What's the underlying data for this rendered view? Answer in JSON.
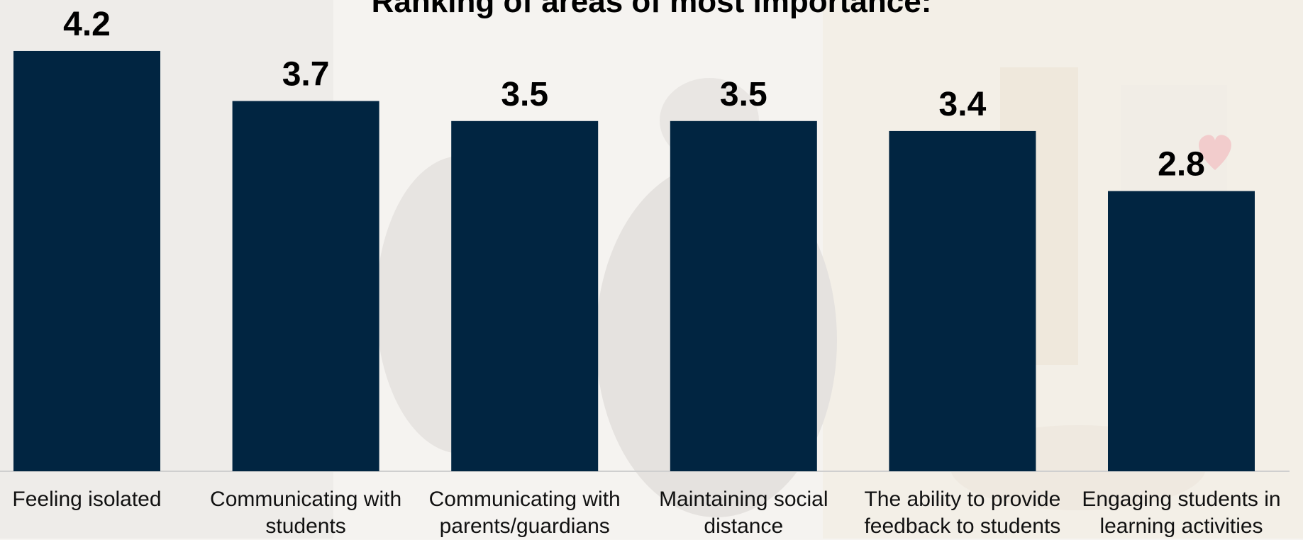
{
  "chart_data": {
    "type": "bar",
    "title": "Ranking of areas of most importance:",
    "categories": [
      "Feeling isolated",
      "Communicating with students",
      "Communicating with parents/guardians",
      "Maintaining  social distance",
      "The ability to provide feedback to students",
      "Engaging students in learning activities"
    ],
    "values": [
      4.2,
      3.7,
      3.5,
      3.5,
      3.4,
      2.8
    ],
    "value_labels": [
      "4.2",
      "3.7",
      "3.5",
      "3.5",
      "3.4",
      "2.8"
    ],
    "bar_color": "#012541",
    "grid": false,
    "legend": "none"
  }
}
